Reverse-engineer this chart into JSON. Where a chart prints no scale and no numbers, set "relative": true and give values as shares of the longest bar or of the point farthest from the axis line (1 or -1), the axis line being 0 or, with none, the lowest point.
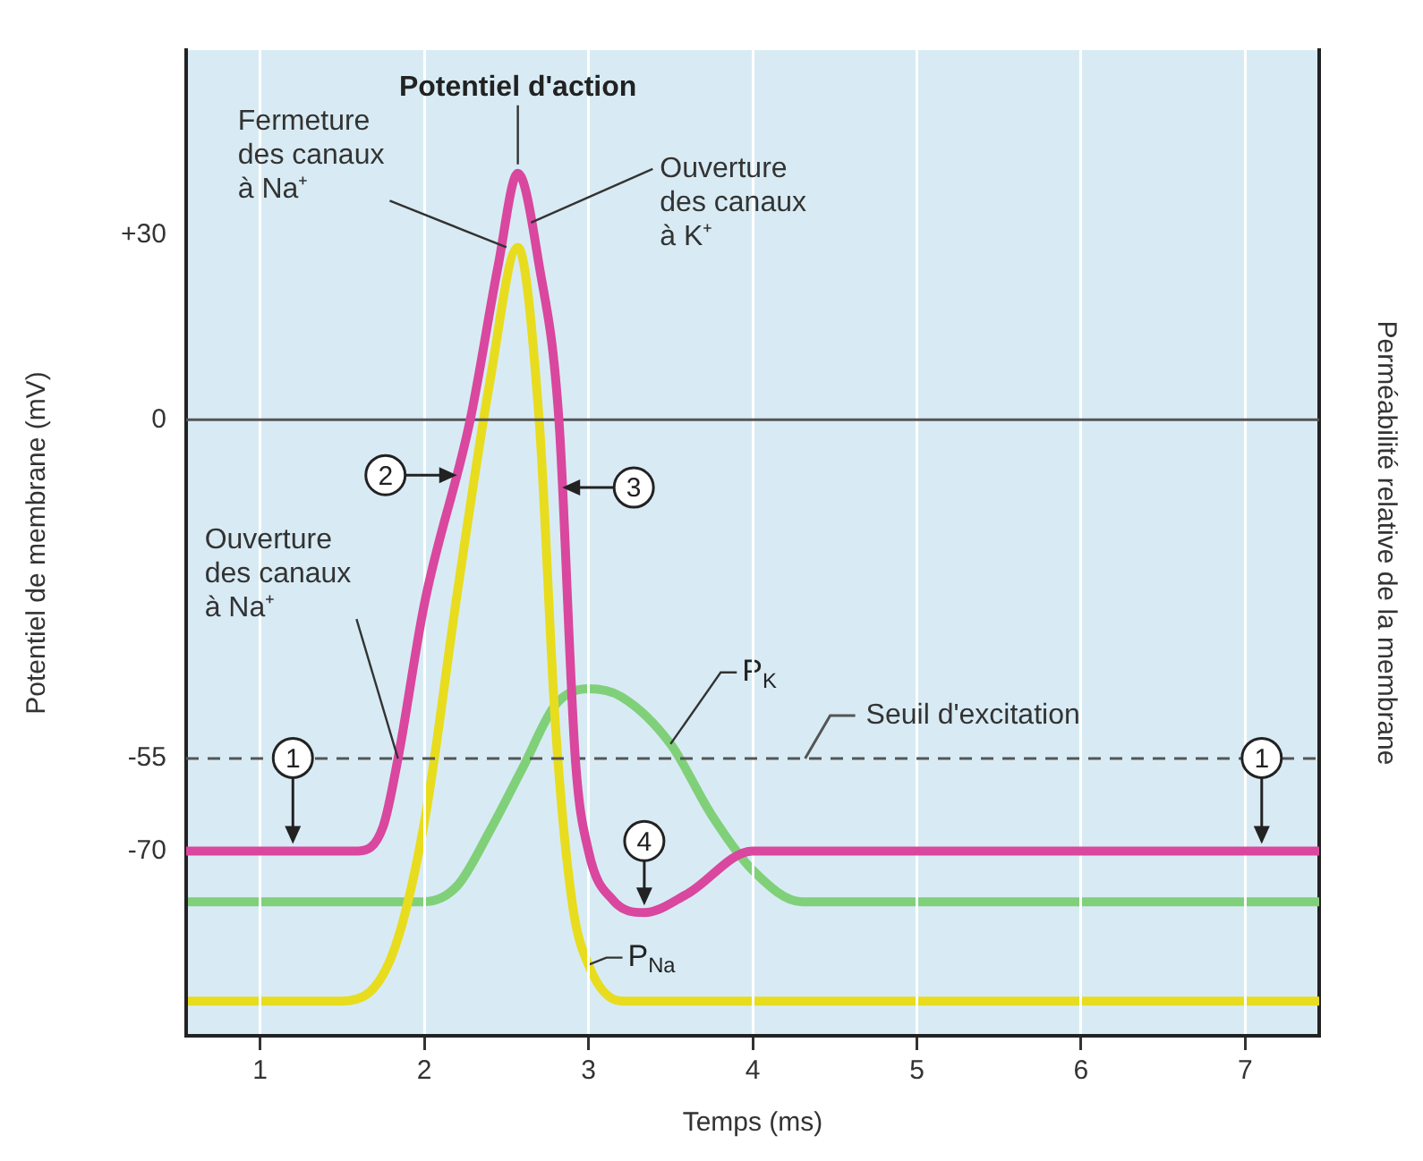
{
  "chart_data": [
    {
      "type": "line",
      "xlabel": "Temps (ms)",
      "ylabel": "Potentiel de membrane (mV)",
      "xlim": [
        0.55,
        7.45
      ],
      "xticks": [
        1,
        2,
        3,
        4,
        5,
        6,
        7
      ],
      "ylim": [
        -100,
        60
      ],
      "yticks": [
        {
          "value": 30,
          "label": "+30"
        },
        0,
        -55,
        -70
      ],
      "grid": "x",
      "legend": false,
      "line_style": "solid",
      "marker": "none",
      "series": [
        {
          "name": "Potentiel d'action",
          "color": "#d9479e",
          "x": [
            0.55,
            1.6,
            1.75,
            1.84,
            2.0,
            2.28,
            2.45,
            2.57,
            2.7,
            2.82,
            2.92,
            3.0,
            3.15,
            3.34,
            3.6,
            4.0,
            7.45
          ],
          "values": [
            -70,
            -70,
            -66,
            -55,
            -30,
            0,
            25,
            40,
            25,
            0,
            -55,
            -70,
            -78,
            -80,
            -77,
            -70,
            -70
          ]
        }
      ],
      "ref_lines": [
        {
          "axis": "y",
          "value": -55,
          "label": "Seuil d'excitation",
          "line_style": "dashed",
          "color": "#555555"
        },
        {
          "axis": "y",
          "value": 0,
          "color": "#555555",
          "line_style": "solid"
        }
      ],
      "annotations": [
        {
          "text": "1",
          "x": 1.2,
          "y": -70
        },
        {
          "text": "2",
          "x": 2.2,
          "y": -9
        },
        {
          "text": "3",
          "x": 2.84,
          "y": -11
        },
        {
          "text": "4",
          "x": 3.34,
          "y": -80
        },
        {
          "text": "1",
          "x": 7.1,
          "y": -70
        },
        {
          "text": "Fermeture des canaux à Na⁺",
          "x": 2.5,
          "y": 28
        },
        {
          "text": "Ouverture des canaux à K⁺",
          "x": 2.65,
          "y": 32
        },
        {
          "text": "Ouverture des canaux à Na⁺",
          "x": 1.84,
          "y": -55
        }
      ]
    },
    {
      "type": "line",
      "relative": true,
      "ylabel": "Perméabilité relative de la membrane",
      "xlim": [
        0.55,
        7.45
      ],
      "legend": false,
      "line_style": "solid",
      "marker": "none",
      "series": [
        {
          "name": "P$_{Na}$",
          "color": "#e8dc1e",
          "x": [
            0.55,
            1.5,
            1.8,
            2.0,
            2.2,
            2.4,
            2.57,
            2.7,
            2.8,
            2.9,
            3.0,
            3.2,
            7.45
          ],
          "values": [
            0.044,
            0.044,
            0.1,
            0.27,
            0.56,
            0.83,
            1,
            0.78,
            0.39,
            0.17,
            0.09,
            0.044,
            0.044
          ]
        },
        {
          "name": "P$_{K}$",
          "color": "#80d07a",
          "x": [
            0.55,
            2.0,
            2.2,
            2.4,
            2.6,
            2.8,
            3.0,
            3.2,
            3.5,
            3.75,
            4.0,
            4.3,
            4.6,
            7.45
          ],
          "values": [
            0.17,
            0.17,
            0.19,
            0.26,
            0.34,
            0.42,
            0.44,
            0.43,
            0.37,
            0.28,
            0.21,
            0.17,
            0.17,
            0.17
          ]
        }
      ]
    }
  ]
}
